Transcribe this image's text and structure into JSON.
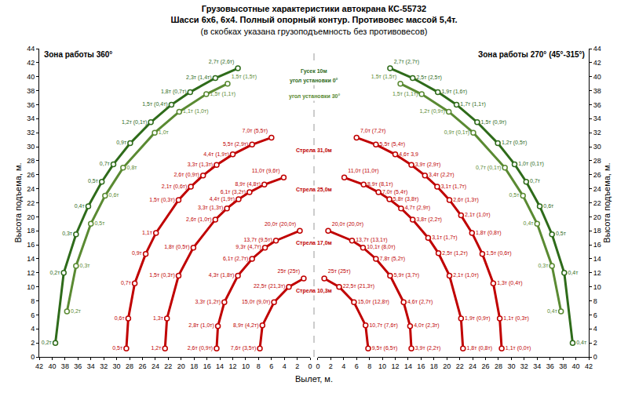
{
  "title": "Грузовысотные характеристики автокрана КС-55732",
  "subtitle": [
    "Шасси 6х6, 6х4. Полный опорный контур. Противовес массой 5,4т.",
    "(в скобках указана грузоподъемность без противовесов)"
  ],
  "chart_data": {
    "type": "scatter",
    "marker": "circle",
    "line_style": "solid",
    "grid": false,
    "xlabel": "Вылет, м.",
    "ylabel": "Высота подъема, м.",
    "ylim": [
      0,
      44
    ],
    "yticks": [
      0,
      2,
      4,
      6,
      8,
      10,
      12,
      14,
      16,
      18,
      20,
      22,
      24,
      26,
      28,
      30,
      32,
      34,
      36,
      38,
      40,
      42,
      44
    ],
    "annotations": [
      "Гусек 10м"
    ],
    "panels": [
      {
        "title": "Зона работы 360°",
        "xlim": [
          42,
          0
        ],
        "xticks": [
          42,
          40,
          38,
          36,
          34,
          32,
          30,
          28,
          26,
          24,
          22,
          20,
          18,
          16,
          14,
          12,
          10,
          8,
          6,
          4,
          2,
          0
        ]
      },
      {
        "title": "Зона работы 270° (45°-315°)",
        "xlim": [
          0,
          42
        ],
        "xticks": [
          0,
          2,
          4,
          6,
          8,
          10,
          12,
          14,
          16,
          18,
          20,
          22,
          24,
          26,
          28,
          30,
          32,
          34,
          36,
          38,
          40,
          42
        ]
      }
    ],
    "series": [
      {
        "name": "Стрела 10,3м",
        "color": "#c00000",
        "data": [
          {
            "x": [
              1.0,
              3.3,
              5.6,
              7.4,
              7.8
            ],
            "values": [
              11.2,
              10.0,
              7.8,
              4.5,
              1.2
            ],
            "labels": [
              "25т (25т)",
              "22,5т (21,3т)",
              "15,0т (9,0т)",
              "8,9т (4,2т)",
              "7,6т (3,5т)"
            ]
          },
          {
            "x": [
              1.0,
              3.3,
              5.6,
              7.4,
              7.8
            ],
            "values": [
              11.2,
              10.0,
              7.8,
              4.5,
              1.2
            ],
            "labels": [
              "25т (25т)",
              "22,5т (21,3т)",
              "15,0т (12,8т)",
              "10,7т (7,6т)",
              "9,5т (6,5т)"
            ]
          }
        ]
      },
      {
        "name": "Стрела 17,0м",
        "color": "#c00000",
        "data": [
          {
            "x": [
              1.6,
              5.3,
              7.0,
              9.0,
              11.2,
              13.3,
              14.3,
              14.5
            ],
            "values": [
              18.0,
              16.6,
              15.6,
              14.0,
              11.6,
              7.8,
              4.4,
              1.2
            ],
            "labels": [
              "20,0т (20,0т)",
              "13,7т (9,5т)",
              "9,3т (4,7т)",
              "6,1т (2,7т)",
              "4,3т (1,8т)",
              "3,3т (1,2т)",
              "2,8т (1,0т)",
              "2,6т (0,9т)"
            ]
          },
          {
            "x": [
              1.6,
              5.3,
              7.0,
              9.0,
              11.2,
              13.3,
              14.3,
              14.5
            ],
            "values": [
              18.0,
              16.6,
              15.6,
              14.0,
              11.6,
              7.8,
              4.4,
              1.2
            ],
            "labels": [
              "20,0т (20,0т)",
              "13,7т (13,1т)",
              "10,1т (8,0т)",
              "7,8т (5,2т)",
              "5,9т (3,7т)",
              "4,6т (2,7т)",
              "4,0т (2,3т)",
              "3,9т (2,2т)"
            ]
          }
        ]
      },
      {
        "name": "Стрела 25,0м",
        "color": "#c00000",
        "data": [
          {
            "x": [
              4.1,
              7.1,
              9.4,
              11.1,
              12.9,
              14.7,
              18.1,
              20.4,
              22.2,
              22.5
            ],
            "values": [
              25.6,
              24.6,
              23.5,
              22.5,
              21.2,
              19.6,
              15.6,
              11.6,
              5.5,
              1.2
            ],
            "labels": [
              "11,0т (9,6т)",
              "8,9т (4,8т)",
              "6,1т (3,2т)",
              "4,4т (1,9т)",
              "3,3т (1,3т)",
              "2,6т (1,0т)",
              "1,8т (0,5т)",
              "1,5т (0,3т)",
              "1,3т",
              "1,2т"
            ]
          },
          {
            "x": [
              4.1,
              7.1,
              9.4,
              11.1,
              12.9,
              14.7,
              17.1,
              18.7,
              20.4,
              22.2,
              22.5
            ],
            "values": [
              25.6,
              24.6,
              23.5,
              22.5,
              21.2,
              19.6,
              17.0,
              14.8,
              11.6,
              5.5,
              1.2
            ],
            "labels": [
              "11,0т (11,0т)",
              "8,9т (8,1т)",
              "7,0т (5,4т)",
              "5,8т (3,8т)",
              "4,7т (2,9т)",
              "3,8т (2,2т)",
              "3,1т (1,7т)",
              "2,5т (1,2т)",
              "2,1т (1,0т)",
              "1,9т (0,9т)",
              "1,8т (0,8т)"
            ]
          }
        ]
      },
      {
        "name": "Стрела 31,0м",
        "color": "#c00000",
        "data": [
          {
            "x": [
              6.0,
              9.0,
              12.0,
              14.5,
              16.6,
              18.5,
              20.4,
              23.9,
              25.5,
              27.2,
              28.2,
              28.5
            ],
            "values": [
              31.3,
              30.3,
              28.9,
              27.4,
              25.9,
              24.3,
              22.4,
              17.7,
              14.7,
              10.5,
              5.5,
              1.2
            ],
            "labels": [
              "7,0т (5,5т)",
              "5,5т (2,9т)",
              "4,4т (1,9т)",
              "3,3т (1,3т)",
              "2,6т (0,9т)",
              "2,1т (0,6т)",
              "1,5т (0,3т)",
              "1,1т",
              "0,9т",
              "0,7т",
              "0,6т",
              "0,5т"
            ]
          },
          {
            "x": [
              6.0,
              9.0,
              12.0,
              14.5,
              16.6,
              18.5,
              20.4,
              22.2,
              23.9,
              25.5,
              27.2,
              28.2,
              28.5
            ],
            "values": [
              31.3,
              30.3,
              28.9,
              27.4,
              25.9,
              24.3,
              22.4,
              20.2,
              17.7,
              14.7,
              10.5,
              5.5,
              1.2
            ],
            "labels": [
              "7,0т (7,2т)",
              "5,5т (5,4т)",
              "4,6т 3,9",
              "3,9т (2,9т)",
              "3,4т (2,2т)",
              "3,1т (1,7т)",
              "2,6т (1,3т)",
              "2,1т (1,0т)",
              "1,8т (0,8т)",
              "1,5т (0,6т)",
              "1,3т (0,4т)",
              "1,1т (0,3т)",
              "1,1т (0,0т)"
            ]
          }
        ]
      },
      {
        "name": "угол установки 0°",
        "color": "#2e6b1a",
        "data": [
          {
            "x": [
              11.2,
              14.7,
              18.6,
              21.5,
              24.7,
              27.9,
              30.5,
              32.3,
              34.4,
              36.3,
              38.2,
              39.5
            ],
            "values": [
              41.2,
              39.8,
              37.8,
              36.0,
              33.5,
              30.5,
              27.5,
              25.0,
              21.5,
              17.5,
              12.0,
              2.0
            ],
            "labels": [
              "2,7т (2,6т)",
              "2,3т (1,4т)",
              "1,8т (0,7т)",
              "1,5т (0,4т)",
              "1,2т (0,1т)",
              "0,9т",
              "0,7т",
              "0,5т",
              "0,4т",
              "0,3т",
              "0,2т",
              "0,2т"
            ]
          },
          {
            "x": [
              11.2,
              14.7,
              18.6,
              21.5,
              24.7,
              27.9,
              30.5,
              32.3,
              34.4,
              36.3,
              38.2,
              39.5
            ],
            "values": [
              41.2,
              39.8,
              37.8,
              36.0,
              33.5,
              30.5,
              27.5,
              25.0,
              21.5,
              17.5,
              12.0,
              2.0
            ],
            "labels": [
              "2,7т (2,7т)",
              "2,5т (2,5т)",
              "1,9т (1,6т)",
              "1,7т (1,1т)",
              "1,5т (0,9т)",
              "1,2т (0,5т)",
              "1,0т (0,1т)",
              "0,7т",
              "0,6т",
              "0,5т",
              "0,4т",
              "0,4т"
            ]
          }
        ]
      },
      {
        "name": "угол установки 30°",
        "color": "#5a8a32",
        "data": [
          {
            "x": [
              12.8,
              16.1,
              20.3,
              24.1,
              29.0,
              31.8,
              34.0,
              36.3,
              37.7
            ],
            "values": [
              39.0,
              37.5,
              35.0,
              32.0,
              27.0,
              23.0,
              19.0,
              13.0,
              6.5
            ],
            "labels": [
              "1,5т (1,5т)",
              "1,5т (1,1т)",
              "1,1т (1,0т)",
              "1,0т",
              "0,8т",
              "0,6т",
              "0,5т",
              "0,3т",
              "0,2т"
            ]
          },
          {
            "x": [
              12.8,
              16.1,
              20.3,
              24.1,
              29.0,
              31.8,
              34.0,
              36.3,
              37.7
            ],
            "values": [
              39.0,
              37.5,
              35.0,
              32.0,
              27.0,
              23.0,
              19.0,
              13.0,
              6.5
            ],
            "labels": [
              "1,5т (1,5т)",
              "1,5т (1,1т)",
              "1,2т (0,9т)",
              "0,9т (0,1т)",
              "0,7т (0,1т)",
              "0,5т",
              "0,4т",
              "0,3т",
              "0,4т"
            ]
          }
        ]
      }
    ]
  }
}
